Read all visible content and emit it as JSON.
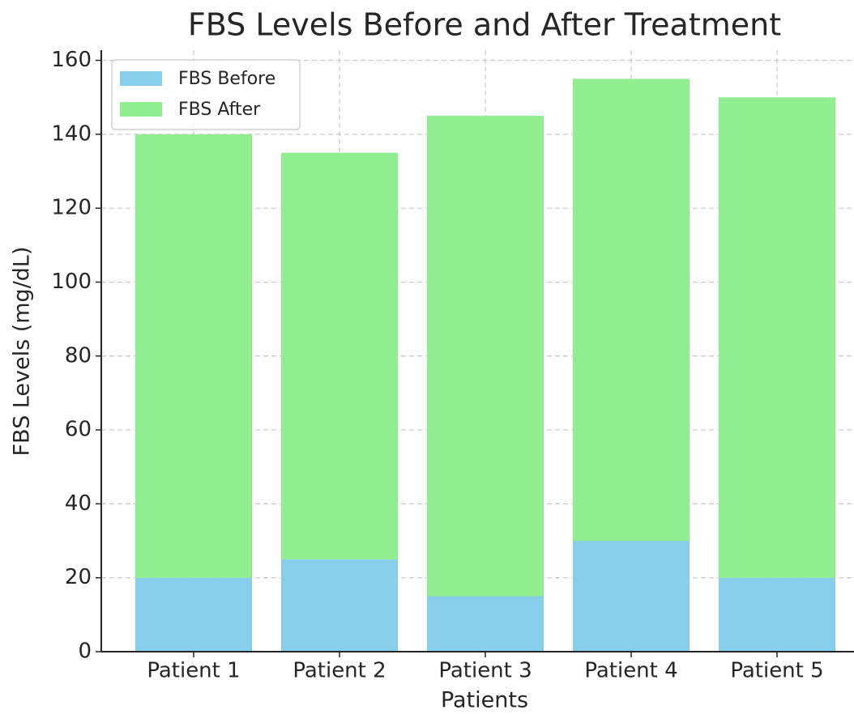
{
  "chart_data": {
    "type": "stacked_bar",
    "title": "FBS Levels Before and After Treatment",
    "x_label": "Patients",
    "y_label": "FBS Levels (mg/dL)",
    "categories": [
      "Patient 1",
      "Patient 2",
      "Patient 3",
      "Patient 4",
      "Patient 5"
    ],
    "series": [
      {
        "name": "FBS Before",
        "color": "#87ceeb",
        "values": [
          20,
          25,
          15,
          30,
          20
        ]
      },
      {
        "name": "FBS After",
        "color": "#90ee90",
        "values": [
          120,
          110,
          130,
          125,
          130
        ]
      }
    ],
    "ylim": [
      0,
      162.75
    ],
    "yticks": [
      0,
      20,
      40,
      60,
      80,
      100,
      120,
      140,
      160
    ],
    "grid": true,
    "legend": "upper-left"
  }
}
